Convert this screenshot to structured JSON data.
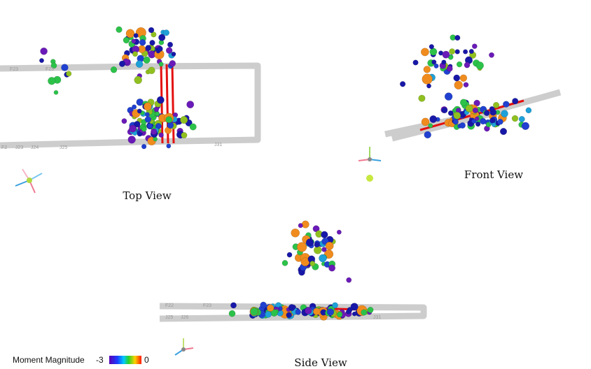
{
  "views": [
    {
      "label": "Top View"
    },
    {
      "label": "Front View"
    },
    {
      "label": "Side View"
    }
  ],
  "legend": {
    "title": "Moment Magnitude",
    "min": "-3",
    "max": "0"
  },
  "tunnel_labels": {
    "top": [
      "F23",
      "F23",
      "F2",
      "J23",
      "J24",
      "J25",
      "J31"
    ],
    "side": [
      "F22",
      "F23",
      "J25",
      "J26",
      "J31"
    ]
  }
}
